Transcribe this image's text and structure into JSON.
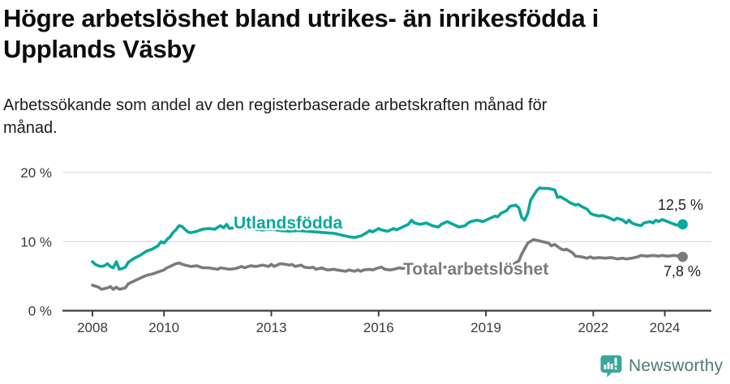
{
  "header": {
    "title_lines": [
      "Högre arbetslöshet bland utrikes- än inrikesfödda i",
      "Upplands Väsby"
    ],
    "subtitle_lines": [
      "Arbetssökande som andel av den registerbaserade arbetskraften månad för",
      "månad."
    ]
  },
  "chart_data": {
    "type": "line",
    "title": "Högre arbetslöshet bland utrikes- än inrikesfödda i Upplands Väsby",
    "subtitle": "Arbetssökande som andel av den registerbaserade arbetskraften månad för månad.",
    "unit": "%",
    "grid": "horizontal",
    "legend_position": "inline-labels",
    "xlim": [
      2007.2,
      2025.35
    ],
    "ylim": [
      0,
      21
    ],
    "x_ticks": [
      {
        "year": 2008,
        "label": "2008"
      },
      {
        "year": 2010,
        "label": "2010"
      },
      {
        "year": 2013,
        "label": "2013"
      },
      {
        "year": 2016,
        "label": "2016"
      },
      {
        "year": 2019,
        "label": "2019"
      },
      {
        "year": 2022,
        "label": "2022"
      },
      {
        "year": 2024,
        "label": "2024"
      }
    ],
    "y_ticks": [
      {
        "value": 0,
        "label": "0 %"
      },
      {
        "value": 10,
        "label": "10 %"
      },
      {
        "value": 20,
        "label": "20 %"
      }
    ],
    "colors": {
      "grid": "#dadada",
      "axis": "#3f3f3f",
      "tick_text": "#3a3a3a",
      "value_text": "#1f1f1f"
    },
    "series": [
      {
        "name": "Utlandsfödda",
        "color": "#0aa89b",
        "end_label": "12,5 %",
        "end_value": 12.5,
        "points": [
          [
            2008,
            7.1
          ],
          [
            2008.08,
            6.7
          ],
          [
            2008.17,
            6.5
          ],
          [
            2008.25,
            6.4
          ],
          [
            2008.33,
            6.5
          ],
          [
            2008.42,
            6.8
          ],
          [
            2008.5,
            6.4
          ],
          [
            2008.58,
            6.2
          ],
          [
            2008.67,
            7.1
          ],
          [
            2008.75,
            6.0
          ],
          [
            2008.83,
            6.1
          ],
          [
            2008.92,
            6.3
          ],
          [
            2009,
            7.0
          ],
          [
            2009.17,
            7.6
          ],
          [
            2009.33,
            8.0
          ],
          [
            2009.5,
            8.6
          ],
          [
            2009.67,
            8.9
          ],
          [
            2009.83,
            9.4
          ],
          [
            2009.92,
            10.0
          ],
          [
            2010,
            9.8
          ],
          [
            2010.08,
            10.3
          ],
          [
            2010.17,
            10.7
          ],
          [
            2010.25,
            11.3
          ],
          [
            2010.33,
            11.7
          ],
          [
            2010.42,
            12.3
          ],
          [
            2010.5,
            12.2
          ],
          [
            2010.58,
            11.8
          ],
          [
            2010.67,
            11.4
          ],
          [
            2010.75,
            11.3
          ],
          [
            2010.92,
            11.5
          ],
          [
            2011.08,
            11.8
          ],
          [
            2011.25,
            11.9
          ],
          [
            2011.42,
            11.8
          ],
          [
            2011.58,
            12.3
          ],
          [
            2011.67,
            12.0
          ],
          [
            2011.75,
            12.5
          ],
          [
            2011.83,
            11.9
          ],
          [
            2012,
            12.1
          ],
          [
            2012.25,
            12.0
          ],
          [
            2012.5,
            11.8
          ],
          [
            2012.75,
            11.7
          ],
          [
            2013,
            11.8
          ],
          [
            2013.25,
            11.6
          ],
          [
            2013.5,
            11.5
          ],
          [
            2013.75,
            11.6
          ],
          [
            2014,
            11.5
          ],
          [
            2014.25,
            11.4
          ],
          [
            2014.5,
            11.3
          ],
          [
            2014.75,
            11.2
          ],
          [
            2015,
            10.9
          ],
          [
            2015.17,
            10.7
          ],
          [
            2015.33,
            10.6
          ],
          [
            2015.5,
            10.8
          ],
          [
            2015.67,
            11.3
          ],
          [
            2015.75,
            11.6
          ],
          [
            2015.83,
            11.4
          ],
          [
            2016,
            11.9
          ],
          [
            2016.08,
            11.7
          ],
          [
            2016.25,
            11.5
          ],
          [
            2016.42,
            11.9
          ],
          [
            2016.5,
            11.7
          ],
          [
            2016.67,
            12.1
          ],
          [
            2016.83,
            12.5
          ],
          [
            2016.92,
            13.1
          ],
          [
            2017,
            12.7
          ],
          [
            2017.17,
            12.5
          ],
          [
            2017.33,
            12.7
          ],
          [
            2017.5,
            12.3
          ],
          [
            2017.67,
            12.1
          ],
          [
            2017.75,
            12.5
          ],
          [
            2017.92,
            12.9
          ],
          [
            2018,
            12.7
          ],
          [
            2018.08,
            12.5
          ],
          [
            2018.25,
            12.1
          ],
          [
            2018.42,
            12.3
          ],
          [
            2018.5,
            12.7
          ],
          [
            2018.58,
            12.9
          ],
          [
            2018.75,
            13.1
          ],
          [
            2018.92,
            12.9
          ],
          [
            2019,
            13.1
          ],
          [
            2019.17,
            13.5
          ],
          [
            2019.25,
            13.7
          ],
          [
            2019.33,
            13.6
          ],
          [
            2019.42,
            14.1
          ],
          [
            2019.58,
            14.5
          ],
          [
            2019.67,
            15.1
          ],
          [
            2019.83,
            15.3
          ],
          [
            2019.92,
            14.9
          ],
          [
            2020,
            13.5
          ],
          [
            2020.08,
            13.1
          ],
          [
            2020.17,
            14.1
          ],
          [
            2020.25,
            16.0
          ],
          [
            2020.42,
            17.4
          ],
          [
            2020.5,
            17.8
          ],
          [
            2020.58,
            17.7
          ],
          [
            2020.75,
            17.7
          ],
          [
            2020.83,
            17.6
          ],
          [
            2020.92,
            17.5
          ],
          [
            2021,
            16.4
          ],
          [
            2021.08,
            16.5
          ],
          [
            2021.25,
            16.0
          ],
          [
            2021.33,
            15.7
          ],
          [
            2021.5,
            15.3
          ],
          [
            2021.58,
            15.4
          ],
          [
            2021.67,
            15.1
          ],
          [
            2021.83,
            14.7
          ],
          [
            2021.92,
            14.1
          ],
          [
            2022,
            13.9
          ],
          [
            2022.17,
            13.7
          ],
          [
            2022.25,
            13.8
          ],
          [
            2022.42,
            13.5
          ],
          [
            2022.5,
            13.3
          ],
          [
            2022.58,
            13.1
          ],
          [
            2022.67,
            13.4
          ],
          [
            2022.83,
            13.1
          ],
          [
            2022.92,
            12.7
          ],
          [
            2023,
            13.1
          ],
          [
            2023.08,
            12.7
          ],
          [
            2023.17,
            12.5
          ],
          [
            2023.33,
            12.3
          ],
          [
            2023.42,
            12.7
          ],
          [
            2023.58,
            12.9
          ],
          [
            2023.67,
            12.7
          ],
          [
            2023.75,
            13.1
          ],
          [
            2023.83,
            12.9
          ],
          [
            2023.92,
            13.2
          ],
          [
            2024.08,
            12.9
          ],
          [
            2024.17,
            12.7
          ],
          [
            2024.33,
            12.4
          ],
          [
            2024.5,
            12.5
          ]
        ]
      },
      {
        "name": "Total arbetslöshet",
        "color": "#7b7b7b",
        "end_label": "7,8 %",
        "end_value": 7.8,
        "points": [
          [
            2008,
            3.7
          ],
          [
            2008.17,
            3.4
          ],
          [
            2008.25,
            3.1
          ],
          [
            2008.42,
            3.3
          ],
          [
            2008.5,
            3.5
          ],
          [
            2008.58,
            3.1
          ],
          [
            2008.67,
            3.4
          ],
          [
            2008.75,
            3.1
          ],
          [
            2008.92,
            3.3
          ],
          [
            2009,
            3.9
          ],
          [
            2009.17,
            4.3
          ],
          [
            2009.33,
            4.7
          ],
          [
            2009.5,
            5.1
          ],
          [
            2009.67,
            5.3
          ],
          [
            2009.83,
            5.6
          ],
          [
            2010,
            5.9
          ],
          [
            2010.08,
            6.2
          ],
          [
            2010.17,
            6.4
          ],
          [
            2010.33,
            6.8
          ],
          [
            2010.42,
            6.9
          ],
          [
            2010.58,
            6.6
          ],
          [
            2010.75,
            6.4
          ],
          [
            2010.92,
            6.5
          ],
          [
            2011.08,
            6.2
          ],
          [
            2011.25,
            6.2
          ],
          [
            2011.5,
            6.0
          ],
          [
            2011.58,
            6.2
          ],
          [
            2011.83,
            6.0
          ],
          [
            2012,
            6.1
          ],
          [
            2012.17,
            6.4
          ],
          [
            2012.25,
            6.2
          ],
          [
            2012.42,
            6.5
          ],
          [
            2012.58,
            6.4
          ],
          [
            2012.75,
            6.6
          ],
          [
            2012.92,
            6.4
          ],
          [
            2013,
            6.7
          ],
          [
            2013.08,
            6.4
          ],
          [
            2013.25,
            6.8
          ],
          [
            2013.42,
            6.7
          ],
          [
            2013.5,
            6.6
          ],
          [
            2013.58,
            6.7
          ],
          [
            2013.67,
            6.4
          ],
          [
            2013.83,
            6.6
          ],
          [
            2013.92,
            6.3
          ],
          [
            2014.08,
            6.2
          ],
          [
            2014.17,
            6.3
          ],
          [
            2014.25,
            6.0
          ],
          [
            2014.42,
            6.2
          ],
          [
            2014.5,
            6.0
          ],
          [
            2014.58,
            5.9
          ],
          [
            2014.75,
            6.0
          ],
          [
            2014.83,
            5.9
          ],
          [
            2015.08,
            5.7
          ],
          [
            2015.17,
            5.9
          ],
          [
            2015.33,
            5.7
          ],
          [
            2015.42,
            5.9
          ],
          [
            2015.5,
            5.7
          ],
          [
            2015.58,
            5.9
          ],
          [
            2015.75,
            6.0
          ],
          [
            2015.83,
            5.9
          ],
          [
            2016,
            6.2
          ],
          [
            2016.08,
            6.3
          ],
          [
            2016.17,
            6.0
          ],
          [
            2016.33,
            5.9
          ],
          [
            2016.42,
            6.0
          ],
          [
            2016.58,
            6.2
          ],
          [
            2016.67,
            6.1
          ],
          [
            2016.75,
            6.2
          ],
          [
            2017,
            6.2
          ],
          [
            2017.25,
            6.3
          ],
          [
            2017.5,
            6.3
          ],
          [
            2017.75,
            6.3
          ],
          [
            2018,
            6.3
          ],
          [
            2018.25,
            6.3
          ],
          [
            2018.5,
            6.4
          ],
          [
            2018.75,
            6.4
          ],
          [
            2019,
            6.4
          ],
          [
            2019.25,
            6.5
          ],
          [
            2019.5,
            6.5
          ],
          [
            2019.75,
            6.7
          ],
          [
            2019.92,
            7.2
          ],
          [
            2020,
            8.2
          ],
          [
            2020.17,
            9.8
          ],
          [
            2020.33,
            10.3
          ],
          [
            2020.5,
            10.1
          ],
          [
            2020.58,
            10.0
          ],
          [
            2020.75,
            9.8
          ],
          [
            2020.83,
            9.4
          ],
          [
            2020.92,
            9.6
          ],
          [
            2021.08,
            9.0
          ],
          [
            2021.17,
            8.8
          ],
          [
            2021.25,
            8.9
          ],
          [
            2021.42,
            8.4
          ],
          [
            2021.5,
            7.9
          ],
          [
            2021.67,
            7.8
          ],
          [
            2021.83,
            7.6
          ],
          [
            2021.92,
            7.8
          ],
          [
            2022,
            7.6
          ],
          [
            2022.17,
            7.7
          ],
          [
            2022.33,
            7.6
          ],
          [
            2022.5,
            7.7
          ],
          [
            2022.67,
            7.5
          ],
          [
            2022.83,
            7.6
          ],
          [
            2022.92,
            7.5
          ],
          [
            2023.08,
            7.6
          ],
          [
            2023.25,
            7.8
          ],
          [
            2023.33,
            8.0
          ],
          [
            2023.5,
            7.9
          ],
          [
            2023.67,
            8.0
          ],
          [
            2023.83,
            7.9
          ],
          [
            2023.92,
            8.0
          ],
          [
            2024.08,
            7.9
          ],
          [
            2024.25,
            8.0
          ],
          [
            2024.42,
            7.9
          ],
          [
            2024.5,
            7.8
          ]
        ]
      }
    ]
  },
  "footer": {
    "brand": "Newsworthy",
    "brand_text_color": "#4f7b78",
    "icon_color": "#3aa69c"
  }
}
